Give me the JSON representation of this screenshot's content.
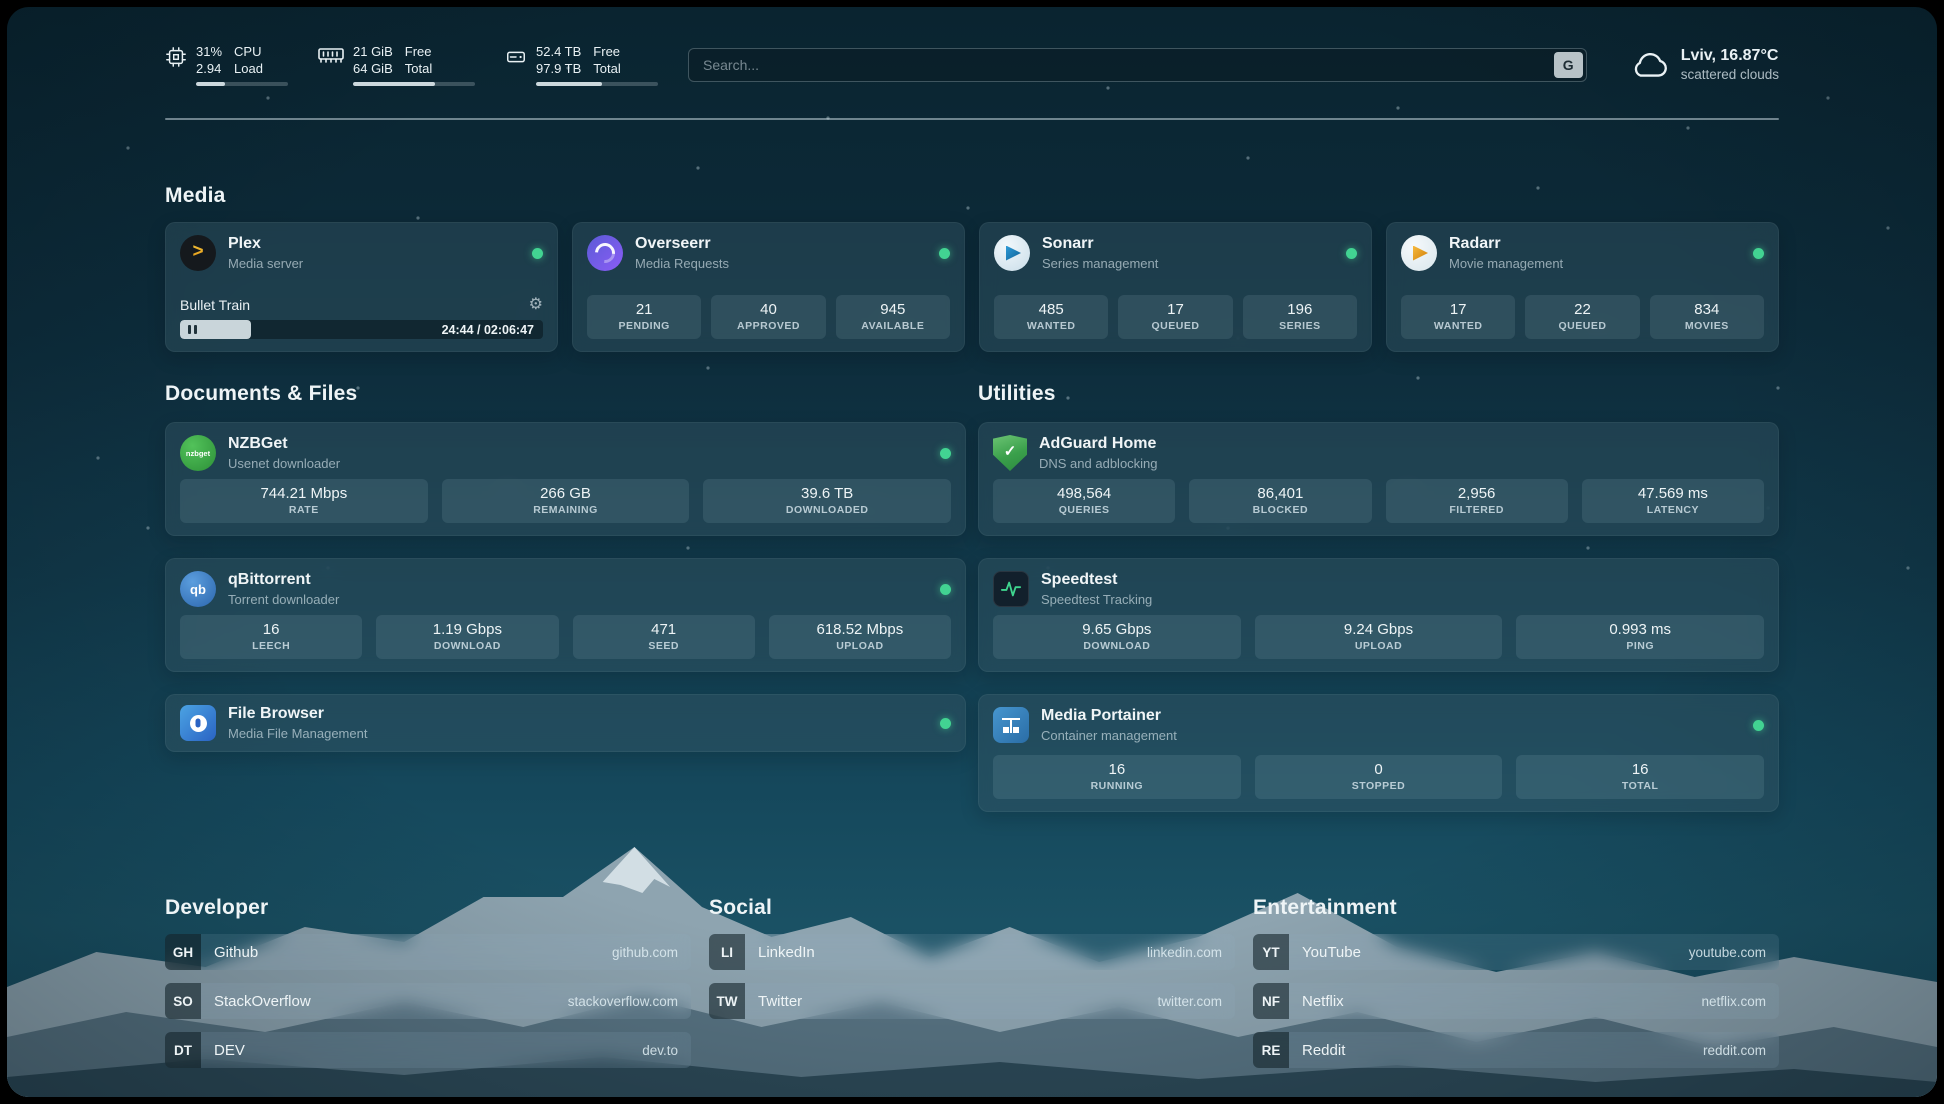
{
  "topbar": {
    "cpu": {
      "value1": "31%",
      "value2": "2.94",
      "name1": "CPU",
      "name2": "Load",
      "bar": 31
    },
    "ram": {
      "value1": "21 GiB",
      "value2": "64 GiB",
      "name1": "Free",
      "name2": "Total",
      "bar": 67
    },
    "disk": {
      "value1": "52.4 TB",
      "value2": "97.9 TB",
      "name1": "Free",
      "name2": "Total",
      "bar": 54
    },
    "search_placeholder": "Search...",
    "search_button": "G",
    "weather_location": "Lviv, 16.87°C",
    "weather_condition": "scattered clouds"
  },
  "media": {
    "title": "Media",
    "plex": {
      "name": "Plex",
      "subtitle": "Media server",
      "now_playing": {
        "title": "Bullet Train",
        "time": "24:44 / 02:06:47",
        "progress": 19.5
      }
    },
    "overseerr": {
      "name": "Overseerr",
      "subtitle": "Media Requests",
      "stats": [
        {
          "value": "21",
          "label": "PENDING"
        },
        {
          "value": "40",
          "label": "APPROVED"
        },
        {
          "value": "945",
          "label": "AVAILABLE"
        }
      ]
    },
    "sonarr": {
      "name": "Sonarr",
      "subtitle": "Series management",
      "stats": [
        {
          "value": "485",
          "label": "WANTED"
        },
        {
          "value": "17",
          "label": "QUEUED"
        },
        {
          "value": "196",
          "label": "SERIES"
        }
      ]
    },
    "radarr": {
      "name": "Radarr",
      "subtitle": "Movie management",
      "stats": [
        {
          "value": "17",
          "label": "WANTED"
        },
        {
          "value": "22",
          "label": "QUEUED"
        },
        {
          "value": "834",
          "label": "MOVIES"
        }
      ]
    }
  },
  "documents": {
    "title": "Documents & Files",
    "nzbget": {
      "name": "NZBGet",
      "subtitle": "Usenet downloader",
      "icon_text": "nzbget",
      "stats": [
        {
          "value": "744.21 Mbps",
          "label": "RATE"
        },
        {
          "value": "266 GB",
          "label": "REMAINING"
        },
        {
          "value": "39.6 TB",
          "label": "DOWNLOADED"
        }
      ]
    },
    "qbittorrent": {
      "name": "qBittorrent",
      "subtitle": "Torrent downloader",
      "icon_text": "qb",
      "stats": [
        {
          "value": "16",
          "label": "LEECH"
        },
        {
          "value": "1.19 Gbps",
          "label": "DOWNLOAD"
        },
        {
          "value": "471",
          "label": "SEED"
        },
        {
          "value": "618.52 Mbps",
          "label": "UPLOAD"
        }
      ]
    },
    "filebrowser": {
      "name": "File Browser",
      "subtitle": "Media File Management"
    }
  },
  "utilities": {
    "title": "Utilities",
    "adguard": {
      "name": "AdGuard Home",
      "subtitle": "DNS and adblocking",
      "stats": [
        {
          "value": "498,564",
          "label": "QUERIES"
        },
        {
          "value": "86,401",
          "label": "BLOCKED"
        },
        {
          "value": "2,956",
          "label": "FILTERED"
        },
        {
          "value": "47.569 ms",
          "label": "LATENCY"
        }
      ]
    },
    "speedtest": {
      "name": "Speedtest",
      "subtitle": "Speedtest Tracking",
      "stats": [
        {
          "value": "9.65 Gbps",
          "label": "DOWNLOAD"
        },
        {
          "value": "9.24 Gbps",
          "label": "UPLOAD"
        },
        {
          "value": "0.993 ms",
          "label": "PING"
        }
      ]
    },
    "portainer": {
      "name": "Media Portainer",
      "subtitle": "Container management",
      "stats": [
        {
          "value": "16",
          "label": "RUNNING"
        },
        {
          "value": "0",
          "label": "STOPPED"
        },
        {
          "value": "16",
          "label": "TOTAL"
        }
      ]
    }
  },
  "bookmarks": {
    "developer": {
      "title": "Developer",
      "items": [
        {
          "abbr": "GH",
          "name": "Github",
          "url": "github.com"
        },
        {
          "abbr": "SO",
          "name": "StackOverflow",
          "url": "stackoverflow.com"
        },
        {
          "abbr": "DT",
          "name": "DEV",
          "url": "dev.to"
        }
      ]
    },
    "social": {
      "title": "Social",
      "items": [
        {
          "abbr": "LI",
          "name": "LinkedIn",
          "url": "linkedin.com"
        },
        {
          "abbr": "TW",
          "name": "Twitter",
          "url": "twitter.com"
        }
      ]
    },
    "entertainment": {
      "title": "Entertainment",
      "items": [
        {
          "abbr": "YT",
          "name": "YouTube",
          "url": "youtube.com"
        },
        {
          "abbr": "NF",
          "name": "Netflix",
          "url": "netflix.com"
        },
        {
          "abbr": "RE",
          "name": "Reddit",
          "url": "reddit.com"
        }
      ]
    }
  },
  "icons": {
    "plex_glyph": ">",
    "adguard_check": "✓",
    "gear": "⚙",
    "cpu": "chip-outline",
    "ram": "memory-stick",
    "disk": "hard-drive",
    "weather": "cloud",
    "plex": "amber-chevron-circle",
    "overseerr": "purple-swirl-circle",
    "sonarr": "blue-play-circle",
    "radarr": "amber-play-circle",
    "nzbget": "green-circle-nzbget",
    "qbittorrent": "blue-circle-qb",
    "filebrowser": "blue-square-file",
    "adguard": "green-shield-check",
    "speedtest": "dark-square-pulse",
    "portainer": "blue-square-crane",
    "status": "green-dot",
    "pause": "pause-bars"
  },
  "colors": {
    "status_online": "#42d392",
    "accent_green": "#3fd68f",
    "card_glass": "rgba(56,88,102,0.42)"
  }
}
